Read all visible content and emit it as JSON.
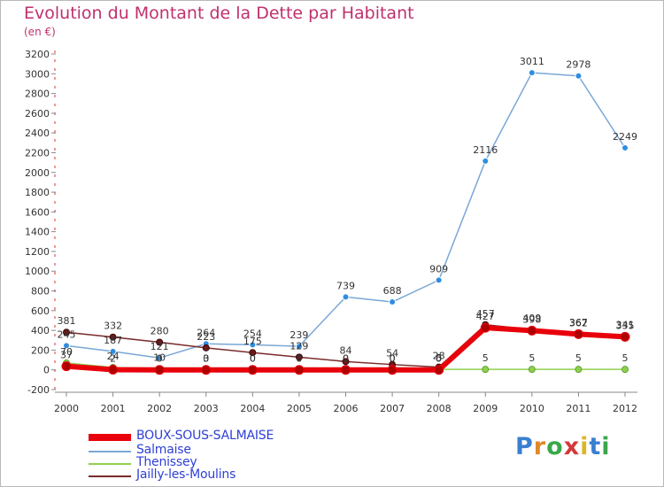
{
  "title": "Evolution du Montant de la Dette par Habitant",
  "unit": "(en €)",
  "logo": {
    "letters": [
      "P",
      "r",
      "o",
      "x",
      "i",
      "t",
      "i"
    ],
    "colors": [
      "#3a7fd0",
      "#e0882a",
      "#3aa84a",
      "#d23a3a",
      "#e0b42a",
      "#3a7fd0",
      "#3aa84a"
    ]
  },
  "chart_data": {
    "type": "line",
    "title": "Evolution du Montant de la Dette par Habitant",
    "ylabel": "(en €)",
    "xlabel": "",
    "ylim": [
      -200,
      3200
    ],
    "yticks": [
      -200,
      0,
      200,
      400,
      600,
      800,
      1000,
      1200,
      1400,
      1600,
      1800,
      2000,
      2200,
      2400,
      2600,
      2800,
      3000,
      3200
    ],
    "categories": [
      "2000",
      "2001",
      "2002",
      "2003",
      "2004",
      "2005",
      "2006",
      "2007",
      "2008",
      "2009",
      "2010",
      "2011",
      "2012"
    ],
    "grid": false,
    "legend_position": "bottom-left",
    "series": [
      {
        "name": "BOUX-SOUS-SALMAISE",
        "color": "#e8000b",
        "values": [
          37,
          2,
          0,
          0,
          0,
          0,
          0,
          0,
          0,
          427,
          398,
          362,
          335
        ],
        "labels": [
          "37",
          "2",
          "0",
          "0",
          "0",
          "0",
          "0",
          "0",
          "0",
          "427",
          "398",
          "362",
          "335"
        ]
      },
      {
        "name": "Salmaise",
        "color": "#7aa7d6",
        "values": [
          245,
          187,
          121,
          264,
          254,
          239,
          739,
          688,
          909,
          2116,
          3011,
          2978,
          2249
        ],
        "labels": [
          "245",
          "187",
          "121",
          "264",
          "254",
          "239",
          "739",
          "688",
          "909",
          "2116",
          "3011",
          "2978",
          "2249"
        ]
      },
      {
        "name": "Thenissey",
        "color": "#8fd14f",
        "values": [
          70,
          24,
          10,
          3,
          0,
          0,
          0,
          0,
          5,
          5,
          5,
          5,
          5
        ],
        "labels": [
          "70",
          "24",
          "10",
          "3",
          "0",
          "0",
          "0",
          "0",
          "5",
          "5",
          "5",
          "5",
          "5"
        ]
      },
      {
        "name": "Jailly-les-Moulins",
        "color": "#7a2b2b",
        "values": [
          381,
          332,
          280,
          223,
          175,
          129,
          84,
          54,
          28,
          457,
          409,
          367,
          341
        ],
        "labels": [
          "381",
          "332",
          "280",
          "223",
          "175",
          "129",
          "84",
          "54",
          "28",
          "457",
          "409",
          "367",
          "341"
        ]
      }
    ]
  }
}
